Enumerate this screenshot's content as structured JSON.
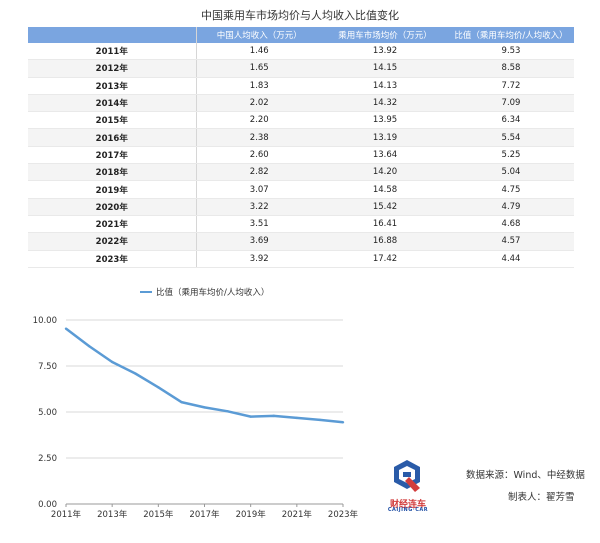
{
  "title": "中国乘用车市场均价与人均收入比值变化",
  "table": {
    "headers": [
      "",
      "中国人均收入（万元）",
      "乘用车市场均价（万元）",
      "比值（乘用车均价/人均收入）"
    ],
    "rows": [
      [
        "2011年",
        "1.46",
        "13.92",
        "9.53"
      ],
      [
        "2012年",
        "1.65",
        "14.15",
        "8.58"
      ],
      [
        "2013年",
        "1.83",
        "14.13",
        "7.72"
      ],
      [
        "2014年",
        "2.02",
        "14.32",
        "7.09"
      ],
      [
        "2015年",
        "2.20",
        "13.95",
        "6.34"
      ],
      [
        "2016年",
        "2.38",
        "13.19",
        "5.54"
      ],
      [
        "2017年",
        "2.60",
        "13.64",
        "5.25"
      ],
      [
        "2018年",
        "2.82",
        "14.20",
        "5.04"
      ],
      [
        "2019年",
        "3.07",
        "14.58",
        "4.75"
      ],
      [
        "2020年",
        "3.22",
        "15.42",
        "4.79"
      ],
      [
        "2021年",
        "3.51",
        "16.41",
        "4.68"
      ],
      [
        "2022年",
        "3.69",
        "16.88",
        "4.57"
      ],
      [
        "2023年",
        "3.92",
        "17.42",
        "4.44"
      ]
    ]
  },
  "chart_data": {
    "type": "line",
    "title": "",
    "xlabel": "",
    "ylabel": "",
    "x": [
      "2011年",
      "2012年",
      "2013年",
      "2014年",
      "2015年",
      "2016年",
      "2017年",
      "2018年",
      "2019年",
      "2020年",
      "2021年",
      "2022年",
      "2023年"
    ],
    "xticks": [
      "2011年",
      "2013年",
      "2015年",
      "2017年",
      "2019年",
      "2021年",
      "2023年"
    ],
    "yticks": [
      "0.00",
      "2.50",
      "5.00",
      "7.50",
      "10.00"
    ],
    "ylim": [
      0,
      10
    ],
    "grid": "horizontal",
    "legend_position": "top-left",
    "series": [
      {
        "name": "比值（乘用车均价/人均收入）",
        "color": "#5b9bd5",
        "values": [
          9.53,
          8.58,
          7.72,
          7.09,
          6.34,
          5.54,
          5.25,
          5.04,
          4.75,
          4.79,
          4.68,
          4.57,
          4.44
        ]
      }
    ]
  },
  "credits": {
    "source": "数据来源：Wind、中经数据",
    "author": "制表人：翟芳雪",
    "logo_name": "财经连车",
    "logo_sub": "CAIJING·CAR"
  },
  "colors": {
    "header_bg": "#7aa5e0",
    "line": "#5b9bd5",
    "grid": "#d9d9d9"
  }
}
